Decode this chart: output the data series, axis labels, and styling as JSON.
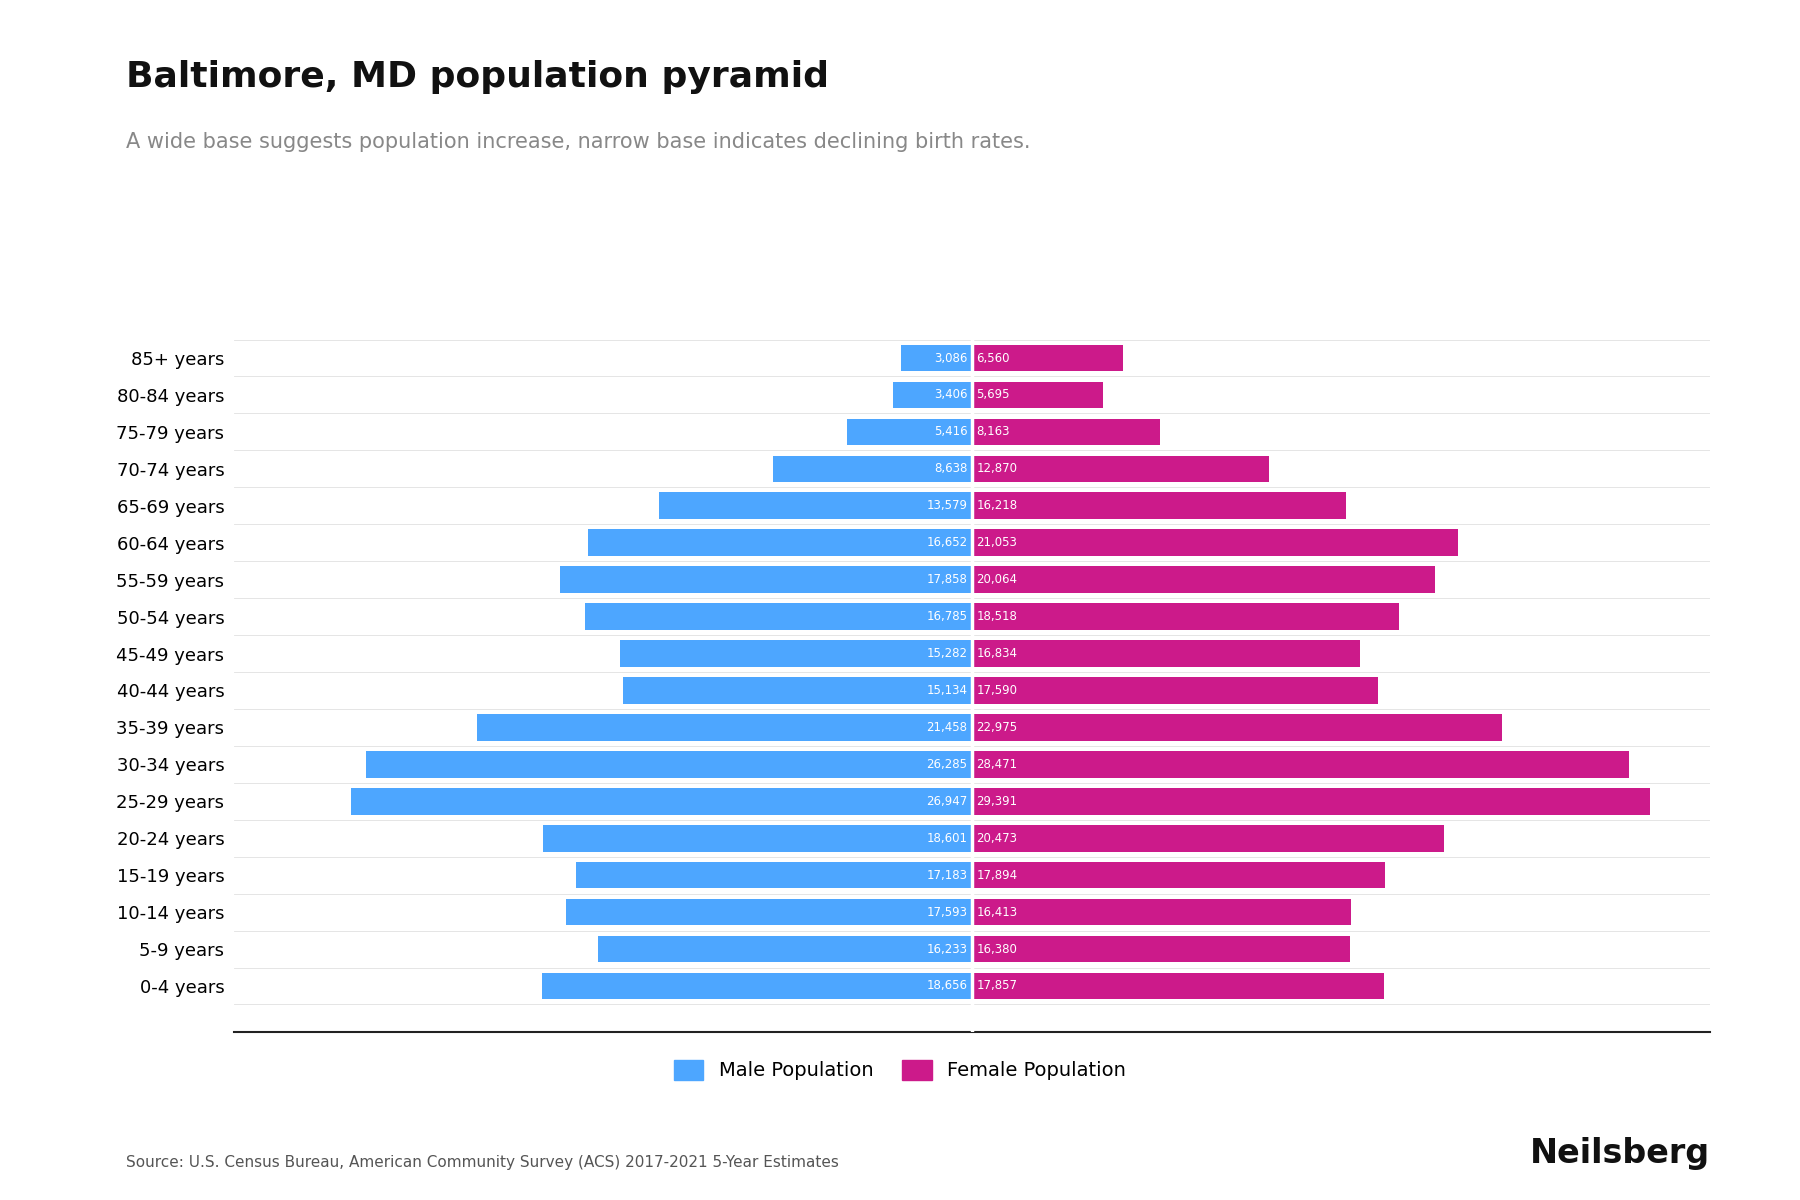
{
  "title": "Baltimore, MD population pyramid",
  "subtitle": "A wide base suggests population increase, narrow base indicates declining birth rates.",
  "source": "Source: U.S. Census Bureau, American Community Survey (ACS) 2017-2021 5-Year Estimates",
  "branding": "Neilsberg",
  "age_groups": [
    "0-4 years",
    "5-9 years",
    "10-14 years",
    "15-19 years",
    "20-24 years",
    "25-29 years",
    "30-34 years",
    "35-39 years",
    "40-44 years",
    "45-49 years",
    "50-54 years",
    "55-59 years",
    "60-64 years",
    "65-69 years",
    "70-74 years",
    "75-79 years",
    "80-84 years",
    "85+ years"
  ],
  "male": [
    18656,
    16233,
    17593,
    17183,
    18601,
    26947,
    26285,
    21458,
    15134,
    15282,
    16785,
    17858,
    16652,
    13579,
    8638,
    5416,
    3406,
    3086
  ],
  "female": [
    17857,
    16380,
    16413,
    17894,
    20473,
    29391,
    28471,
    22975,
    17590,
    16834,
    18518,
    20064,
    21053,
    16218,
    12870,
    8163,
    5695,
    6560
  ],
  "male_color": "#4da6ff",
  "female_color": "#cc1a8a",
  "bg_color": "#ffffff",
  "bar_height": 0.72,
  "xlim": 32000,
  "title_fontsize": 26,
  "subtitle_fontsize": 15,
  "ytick_fontsize": 13,
  "value_fontsize": 8.5,
  "legend_fontsize": 14,
  "source_fontsize": 11,
  "branding_fontsize": 24
}
